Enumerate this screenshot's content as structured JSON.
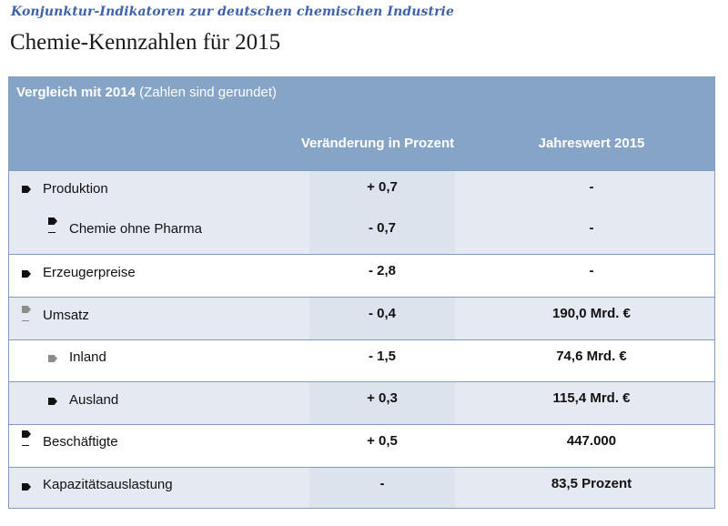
{
  "subtitle": "Konjunktur-Indikatoren zur deutschen chemischen Industrie",
  "title": "Chemie-Kennzahlen für 2015",
  "table": {
    "compare_bold": "Vergleich mit 2014",
    "compare_note": " (Zahlen sind gerundet)",
    "col_change": "Veränderung in Prozent",
    "col_value": "Jahreswert 2015",
    "rows": [
      {
        "label": "Produktion",
        "change": "+ 0,7",
        "value": "-"
      },
      {
        "label": "Chemie ohne Pharma",
        "change": "- 0,7",
        "value": "-"
      },
      {
        "label": "Erzeugerpreise",
        "change": "- 2,8",
        "value": "-"
      },
      {
        "label": "Umsatz",
        "change": "- 0,4",
        "value": "190,0 Mrd. €"
      },
      {
        "label": "Inland",
        "change": "- 1,5",
        "value": "74,6 Mrd. €"
      },
      {
        "label": "Ausland",
        "change": "+ 0,3",
        "value": "115,4 Mrd. €"
      },
      {
        "label": "Beschäftigte",
        "change": "+ 0,5",
        "value": "447.000"
      },
      {
        "label": "Kapazitätsauslastung",
        "change": "-",
        "value": "83,5 Prozent"
      }
    ]
  },
  "icons": {
    "bullet": "arrow-bullet-icon"
  }
}
